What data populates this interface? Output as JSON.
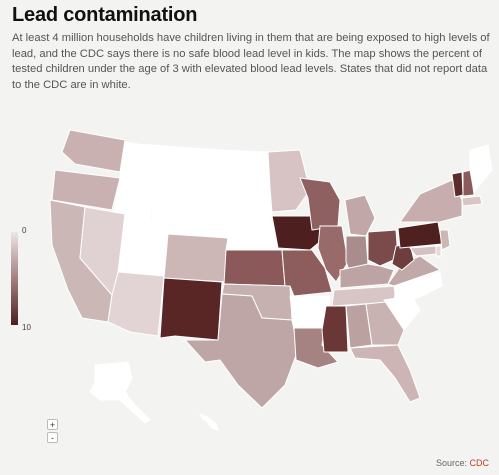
{
  "title": "Lead contamination",
  "description": "At least 4 million households have children living in them that are being exposed to high levels of lead, and the CDC says there is no safe blood lead level in kids. The map shows the percent of tested children under the age of 3 with elevated blood lead levels. States that did not report data to the CDC are in white.",
  "legend": {
    "min": "0",
    "max": "10"
  },
  "zoom": {
    "in_label": "+",
    "out_label": "-"
  },
  "source": {
    "prefix": "Source: ",
    "name": "CDC"
  },
  "colors": {
    "no_data": "#ffffff",
    "scale_low": "#ede4e4",
    "scale_high": "#4e1f1f",
    "background": "#f3f3f1",
    "link": "#c0392b"
  }
}
